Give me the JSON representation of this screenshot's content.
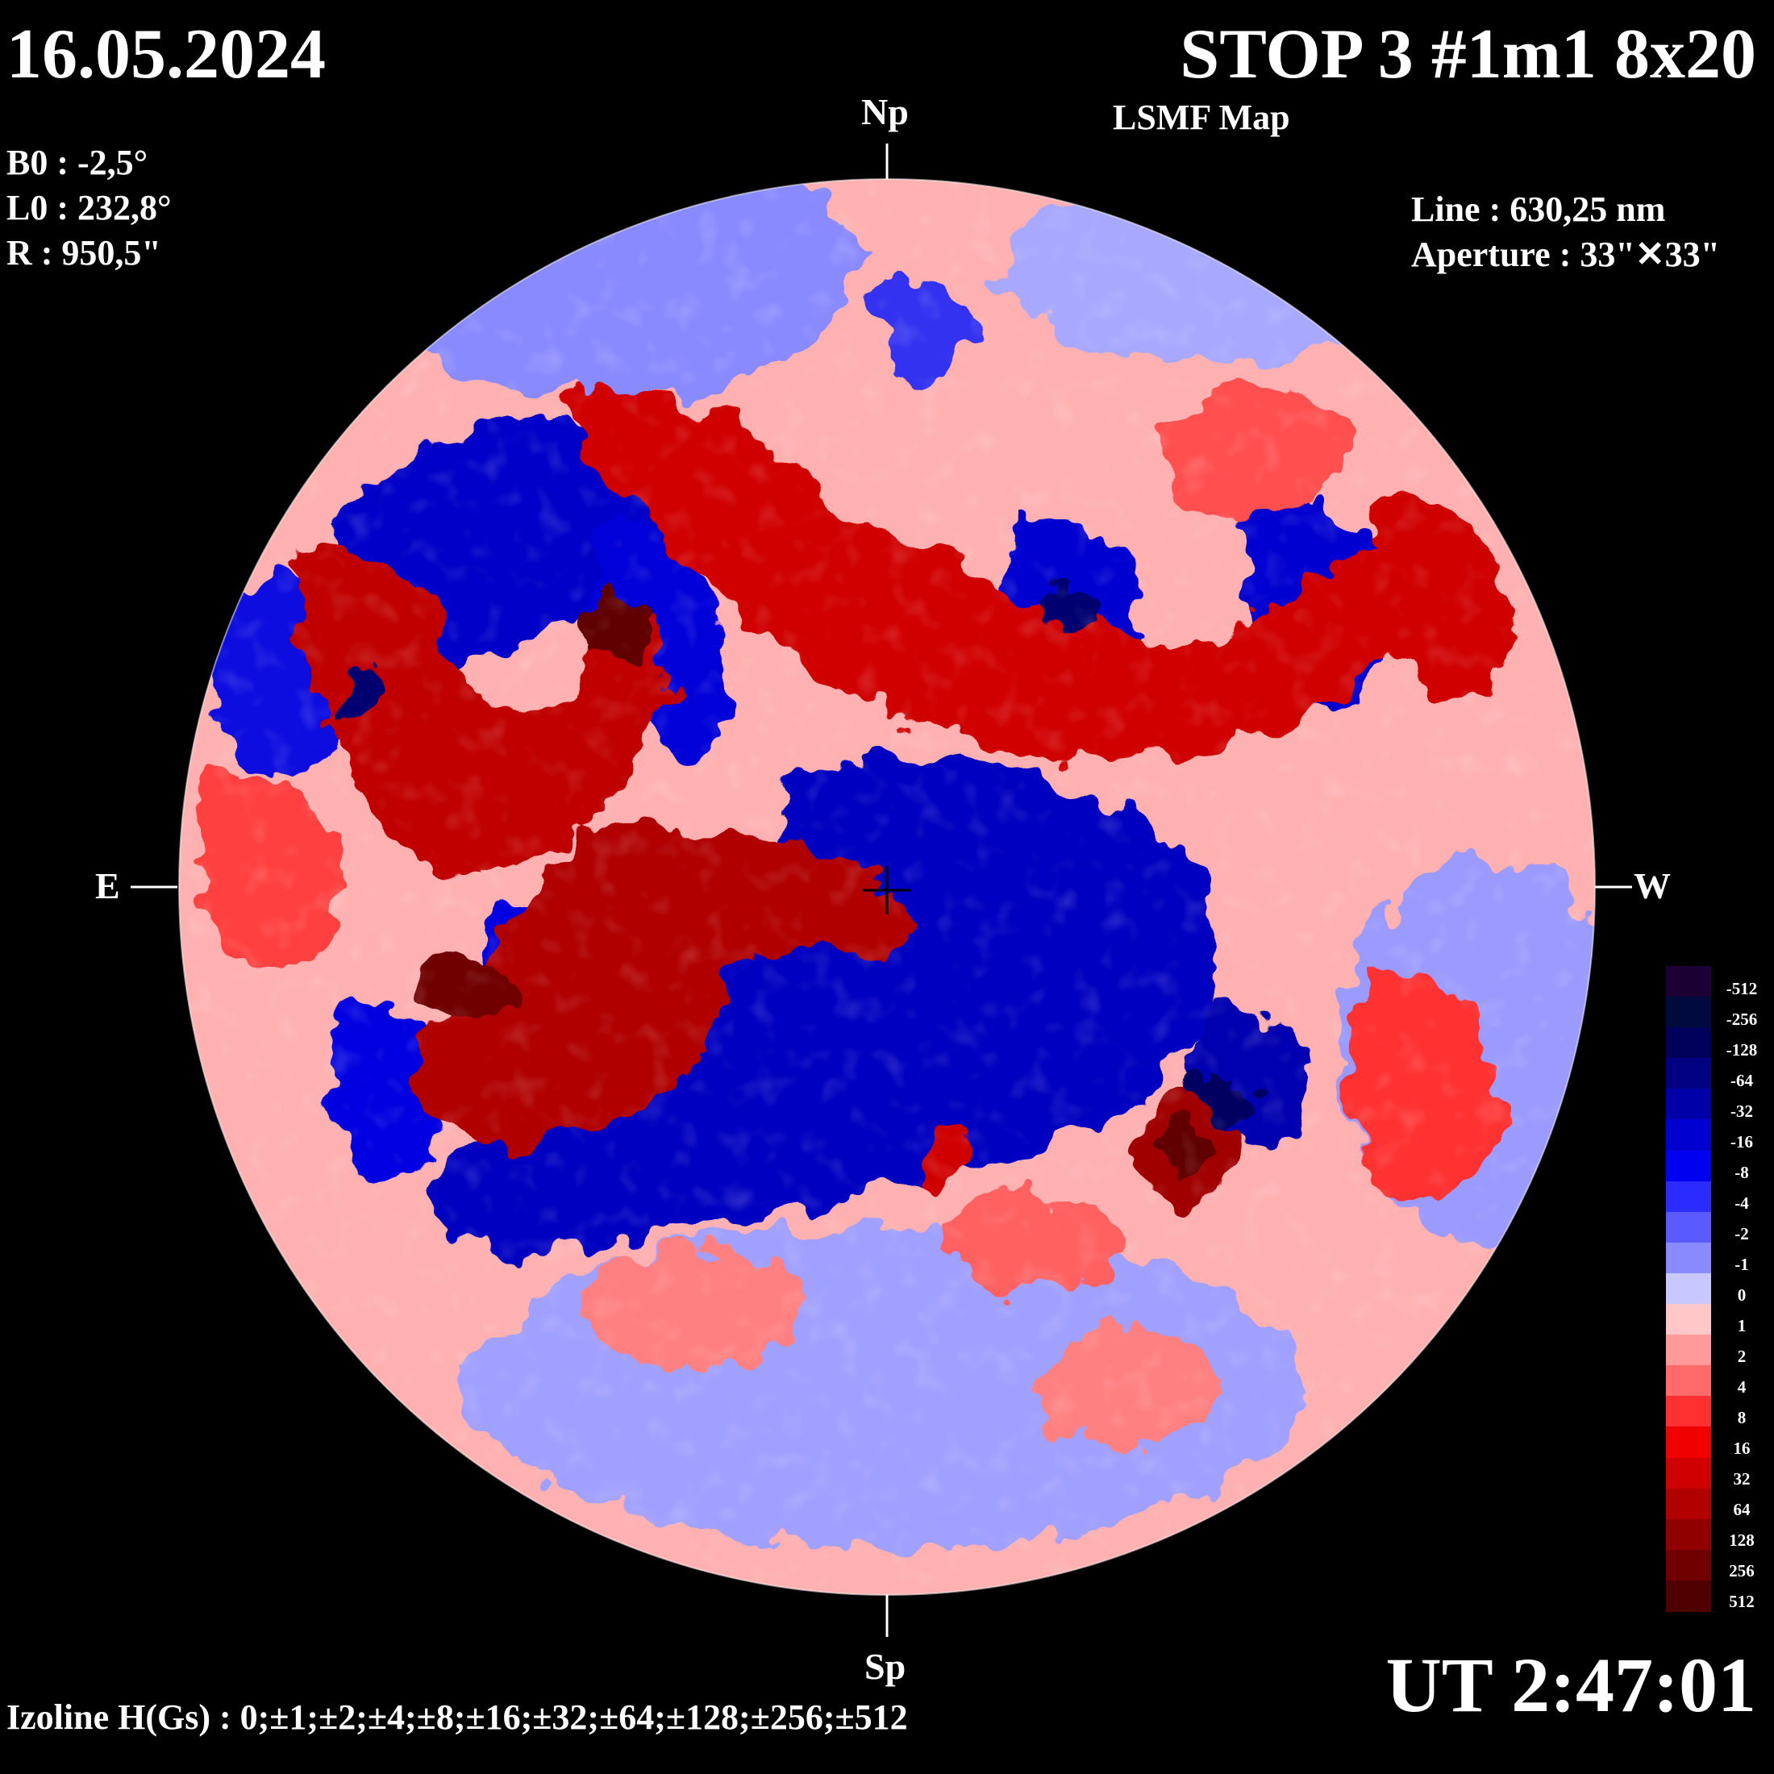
{
  "header": {
    "date": "16.05.2024",
    "title": "STOP 3 #1m1 8x20",
    "subtitle": "LSMF  Map"
  },
  "params": {
    "b0": "B0 : -2,5°",
    "l0": "L0 : 232,8°",
    "r": "R  : 950,5\"",
    "line": "Line :  630,25 nm",
    "aperture": "Aperture : 33\"✕33\""
  },
  "directions": {
    "north": "Np",
    "south": "Sp",
    "east": "E",
    "west": "W"
  },
  "footer": {
    "time": "UT 2:47:01",
    "izoline": "Izoline H(Gs) : 0;±1;±2;±4;±8;±16;±32;±64;±128;±256;±512"
  },
  "legend": {
    "labels": [
      "-512",
      "-256",
      "-128",
      "-64",
      "-32",
      "-16",
      "-8",
      "-4",
      "-2",
      "-1",
      "0",
      "1",
      "2",
      "4",
      "8",
      "16",
      "32",
      "64",
      "128",
      "256",
      "512"
    ],
    "colors": [
      "#1a0033",
      "#000a3c",
      "#00005a",
      "#000080",
      "#0000a8",
      "#0000d0",
      "#0000f0",
      "#2b2bff",
      "#5a5aff",
      "#8a8aff",
      "#c8c8ff",
      "#ffc8c8",
      "#ff9a9a",
      "#ff6a6a",
      "#ff3030",
      "#f00000",
      "#d00000",
      "#b00000",
      "#900000",
      "#700000",
      "#500000"
    ]
  },
  "colors": {
    "background": "#000000",
    "negative_strong": "#0000c8",
    "negative_weak": "#9aa0ff",
    "positive_weak": "#ff9a9a",
    "positive_strong": "#c00000"
  }
}
